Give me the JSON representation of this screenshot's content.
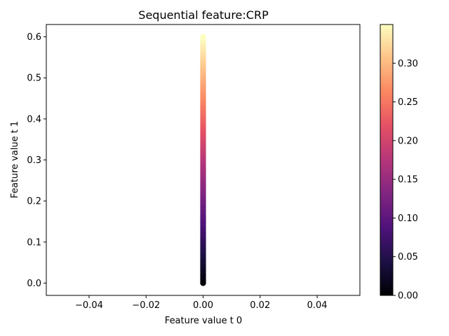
{
  "chart_data": {
    "type": "scatter",
    "title": "Sequential feature:CRP",
    "xlabel": "Feature value t 0",
    "ylabel": "Feature value t 1",
    "xlim": [
      -0.055,
      0.055
    ],
    "ylim": [
      -0.03,
      0.63
    ],
    "xticks": [
      -0.04,
      -0.02,
      0.0,
      0.02,
      0.04
    ],
    "xtick_labels": [
      "−0.04",
      "−0.02",
      "0.00",
      "0.02",
      "0.04"
    ],
    "yticks": [
      0.0,
      0.1,
      0.2,
      0.3,
      0.4,
      0.5,
      0.6
    ],
    "ytick_labels": [
      "0.0",
      "0.1",
      "0.2",
      "0.3",
      "0.4",
      "0.5",
      "0.6"
    ],
    "grid": false,
    "colormap": "magma",
    "colorbar": {
      "range": [
        0.0,
        0.35
      ],
      "ticks": [
        0.0,
        0.05,
        0.1,
        0.15,
        0.2,
        0.25,
        0.3
      ],
      "tick_labels": [
        "0.00",
        "0.05",
        "0.10",
        "0.15",
        "0.20",
        "0.25",
        "0.30"
      ]
    },
    "points": {
      "x": 0.0,
      "y_range": [
        0.0,
        0.6
      ],
      "y_step": 0.004,
      "color_value_range": [
        0.0,
        0.35
      ]
    }
  }
}
